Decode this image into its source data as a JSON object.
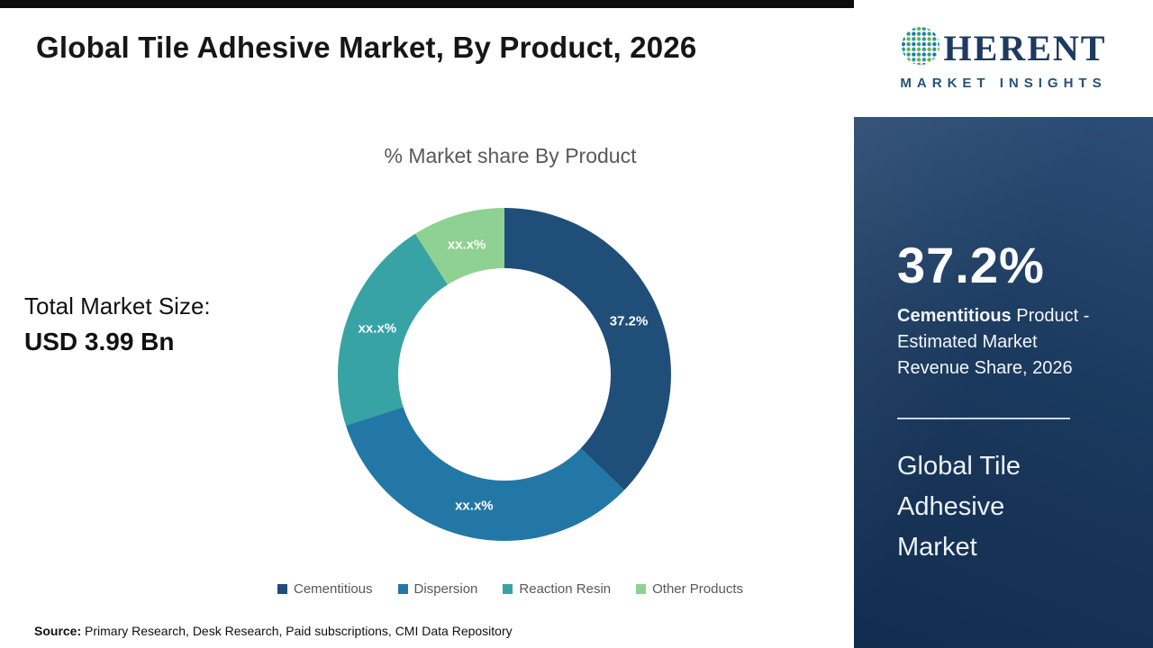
{
  "header": {
    "title": "Global Tile Adhesive Market, By Product, 2026"
  },
  "logo": {
    "brand_rest": "HERENT",
    "subtitle": "MARKET INSIGHTS"
  },
  "chart_data": {
    "type": "pie",
    "subtype": "donut",
    "title": "% Market share By Product",
    "legend_position": "bottom",
    "segments": [
      {
        "label": "Cementitious",
        "value": 37.2,
        "display_label": "37.2%",
        "color": "#1F4E79"
      },
      {
        "label": "Dispersion",
        "value": 32.8,
        "display_label": "xx.x%",
        "color": "#2377A6"
      },
      {
        "label": "Reaction Resin",
        "value": 21.0,
        "display_label": "xx.x%",
        "color": "#38A3A5"
      },
      {
        "label": "Other Products",
        "value": 9.0,
        "display_label": "xx.x%",
        "color": "#8FD192"
      }
    ]
  },
  "market_size": {
    "label": "Total Market Size:",
    "value": "USD 3.99 Bn"
  },
  "sidebar": {
    "stat_value": "37.2%",
    "stat_bold": "Cementitious",
    "stat_rest": " Product - Estimated Market Revenue Share, 2026",
    "market_name": "Global Tile Adhesive Market"
  },
  "footer": {
    "source_label": "Source:",
    "source_text": " Primary Research, Desk Research, Paid subscriptions, CMI Data Repository"
  }
}
